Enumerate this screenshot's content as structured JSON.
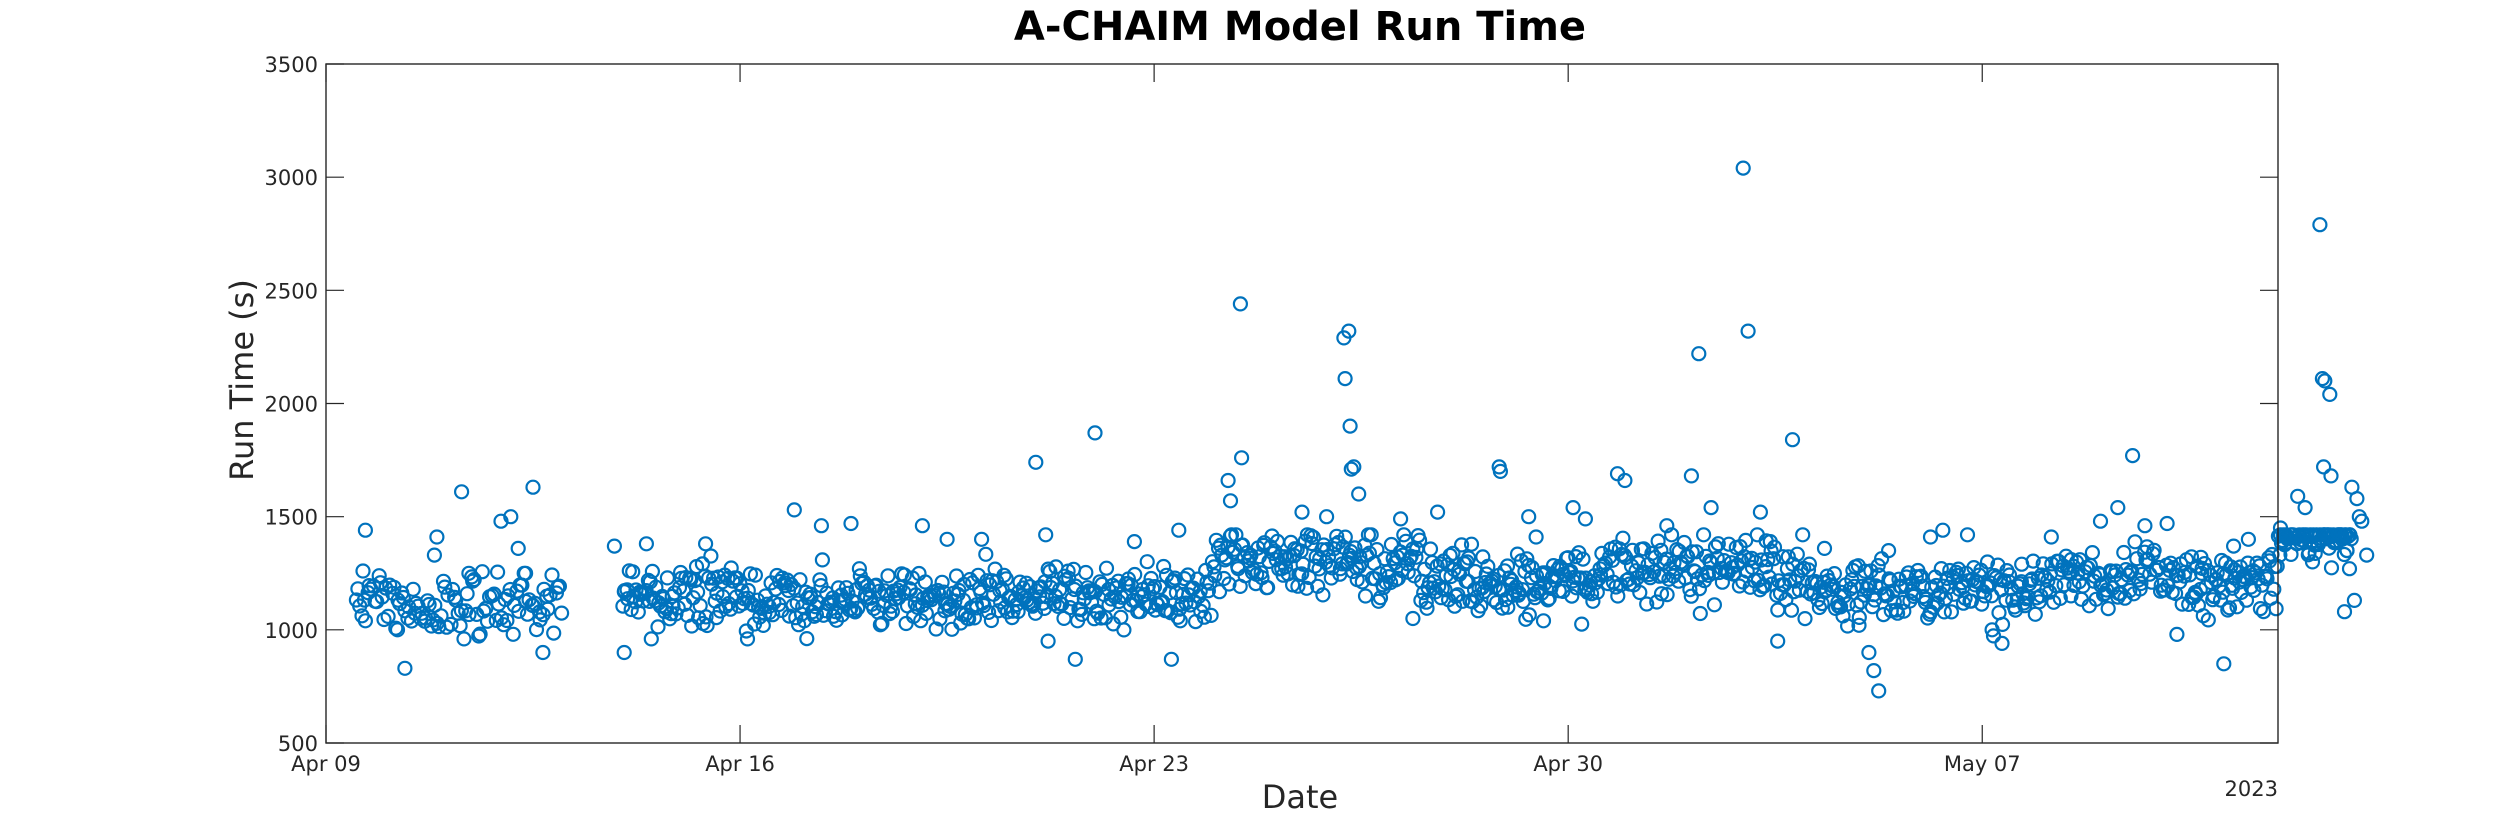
{
  "chart_data": {
    "type": "scatter",
    "title": "A-CHAIM Model Run Time",
    "xlabel": "Date",
    "ylabel": "Run Time (s)",
    "year_label": "2023",
    "xlim": [
      "2023-04-09",
      "2023-05-12"
    ],
    "ylim": [
      500,
      3500
    ],
    "x_ticks": [
      {
        "date": "2023-04-09",
        "label": "Apr 09"
      },
      {
        "date": "2023-04-16",
        "label": "Apr 16"
      },
      {
        "date": "2023-04-23",
        "label": "Apr 23"
      },
      {
        "date": "2023-04-30",
        "label": "Apr 30"
      },
      {
        "date": "2023-05-07",
        "label": "May 07"
      }
    ],
    "y_ticks": [
      500,
      1000,
      1500,
      2000,
      2500,
      3000,
      3500
    ],
    "grid": false,
    "marker": "circle",
    "color": "#0072BD",
    "series": [
      {
        "points": [
          [
            "2023-04-09 16:00",
            1440
          ],
          [
            "2023-04-09 15:00",
            1260
          ],
          [
            "2023-04-10 08:00",
            830
          ],
          [
            "2023-04-10 21:00",
            1410
          ],
          [
            "2023-04-11 07:00",
            1610
          ],
          [
            "2023-04-11 23:00",
            1480
          ],
          [
            "2023-04-12 03:00",
            1500
          ],
          [
            "2023-04-12 06:00",
            1360
          ],
          [
            "2023-04-12 12:00",
            1630
          ],
          [
            "2023-04-12 16:00",
            900
          ],
          [
            "2023-04-10 20:00",
            1330
          ],
          [
            "2023-04-11 10:00",
            1250
          ],
          [
            "2023-04-10 05:00",
            1000
          ],
          [
            "2023-04-12 09:00",
            1250
          ],
          [
            "2023-04-13 21:00",
            1370
          ],
          [
            "2023-04-14 01:00",
            900
          ],
          [
            "2023-04-14 10:00",
            1380
          ],
          [
            "2023-04-14 12:00",
            960
          ],
          [
            "2023-04-15 10:00",
            1380
          ],
          [
            "2023-04-16 03:00",
            960
          ],
          [
            "2023-04-16 22:00",
            1530
          ],
          [
            "2023-04-17 09:00",
            1460
          ],
          [
            "2023-04-17 21:00",
            1470
          ],
          [
            "2023-04-19 02:00",
            1460
          ],
          [
            "2023-04-19 12:00",
            1400
          ],
          [
            "2023-04-20 02:00",
            1400
          ],
          [
            "2023-04-21 00:00",
            1740
          ],
          [
            "2023-04-21 04:00",
            1420
          ],
          [
            "2023-04-21 05:00",
            950
          ],
          [
            "2023-04-21 16:00",
            870
          ],
          [
            "2023-04-22 00:00",
            1870
          ],
          [
            "2023-04-22 16:00",
            1390
          ],
          [
            "2023-04-23 07:00",
            870
          ],
          [
            "2023-04-23 10:00",
            1440
          ],
          [
            "2023-04-24 06:00",
            1660
          ],
          [
            "2023-04-24 11:00",
            2440
          ],
          [
            "2023-04-24 11:30",
            1760
          ],
          [
            "2023-04-24 07:00",
            1570
          ],
          [
            "2023-04-25 22:00",
            1500
          ],
          [
            "2023-04-25 12:00",
            1520
          ],
          [
            "2023-04-26 05:00",
            2290
          ],
          [
            "2023-04-26 07:00",
            2320
          ],
          [
            "2023-04-26 05:30",
            2110
          ],
          [
            "2023-04-26 07:30",
            1900
          ],
          [
            "2023-04-26 08:00",
            1710
          ],
          [
            "2023-04-26 09:00",
            1720
          ],
          [
            "2023-04-26 11:00",
            1600
          ],
          [
            "2023-04-27 04:00",
            1490
          ],
          [
            "2023-04-27 09:00",
            1050
          ],
          [
            "2023-04-27 19:00",
            1520
          ],
          [
            "2023-04-28 07:00",
            1300
          ],
          [
            "2023-04-28 20:00",
            1720
          ],
          [
            "2023-04-28 20:30",
            1700
          ],
          [
            "2023-04-29 08:00",
            1500
          ],
          [
            "2023-04-29 11:00",
            1410
          ],
          [
            "2023-04-29 14:00",
            1040
          ],
          [
            "2023-04-30 02:00",
            1540
          ],
          [
            "2023-04-30 07:00",
            1490
          ],
          [
            "2023-04-30 20:00",
            1690
          ],
          [
            "2023-04-30 23:00",
            1660
          ],
          [
            "2023-05-01 16:00",
            1460
          ],
          [
            "2023-05-02 02:00",
            1680
          ],
          [
            "2023-05-02 05:00",
            2220
          ],
          [
            "2023-05-02 10:00",
            1540
          ],
          [
            "2023-05-02 23:00",
            3040
          ],
          [
            "2023-05-03 01:00",
            2320
          ],
          [
            "2023-05-03 06:00",
            1520
          ],
          [
            "2023-05-03 10:00",
            1390
          ],
          [
            "2023-05-03 19:00",
            1840
          ],
          [
            "2023-05-03 13:00",
            950
          ],
          [
            "2023-05-04 08:00",
            1360
          ],
          [
            "2023-05-04 22:00",
            1020
          ],
          [
            "2023-05-05 02:00",
            900
          ],
          [
            "2023-05-05 04:00",
            820
          ],
          [
            "2023-05-05 06:00",
            730
          ],
          [
            "2023-05-05 10:00",
            1350
          ],
          [
            "2023-05-06 03:00",
            1410
          ],
          [
            "2023-05-06 08:00",
            1440
          ],
          [
            "2023-05-06 18:00",
            1420
          ],
          [
            "2023-05-07 04:00",
            1000
          ],
          [
            "2023-05-07 08:00",
            940
          ],
          [
            "2023-05-07 16:00",
            1290
          ],
          [
            "2023-05-08 04:00",
            1410
          ],
          [
            "2023-05-08 12:00",
            1150
          ],
          [
            "2023-05-09 00:00",
            1480
          ],
          [
            "2023-05-09 07:00",
            1540
          ],
          [
            "2023-05-09 13:00",
            1770
          ],
          [
            "2023-05-09 18:00",
            1460
          ],
          [
            "2023-05-10 03:00",
            1470
          ],
          [
            "2023-05-10 07:00",
            980
          ],
          [
            "2023-05-10 17:00",
            1250
          ],
          [
            "2023-05-10 22:00",
            1150
          ],
          [
            "2023-05-11 02:00",
            850
          ],
          [
            "2023-05-11 06:00",
            1370
          ],
          [
            "2023-05-11 12:00",
            1400
          ],
          [
            "2023-05-12 01:00",
            1450
          ],
          [
            "2023-05-12 08:00",
            1590
          ],
          [
            "2023-05-12 11:00",
            1540
          ],
          [
            "2023-05-12 14:00",
            1300
          ],
          [
            "2023-05-12 17:00",
            2790
          ],
          [
            "2023-05-12 18:00",
            2110
          ],
          [
            "2023-05-12 19:00",
            2100
          ],
          [
            "2023-05-12 21:00",
            2040
          ],
          [
            "2023-05-12 18:30",
            1720
          ],
          [
            "2023-05-12 21:30",
            1680
          ],
          [
            "2023-05-13 02:00",
            1400
          ],
          [
            "2023-05-13 04:00",
            1350
          ],
          [
            "2023-05-13 06:00",
            1630
          ],
          [
            "2023-05-13 08:00",
            1580
          ],
          [
            "2023-05-13 10:00",
            1480
          ],
          [
            "2023-05-13 12:00",
            1330
          ],
          [
            "2023-05-13 03:00",
            1080
          ],
          [
            "2023-05-13 07:00",
            1130
          ],
          [
            "2023-05-13 05:00",
            1270
          ],
          [
            "2023-05-13 09:00",
            1500
          ]
        ]
      }
    ],
    "bands": [
      {
        "from": "2023-04-09 12:00",
        "to": "2023-04-13 00:00",
        "center": 1130,
        "spread": 110,
        "n": 110
      },
      {
        "from": "2023-04-14 00:00",
        "to": "2023-04-20 00:00",
        "center": 1140,
        "spread": 95,
        "n": 250
      },
      {
        "from": "2023-04-20 00:00",
        "to": "2023-04-24 00:00",
        "center": 1150,
        "spread": 95,
        "n": 170
      },
      {
        "from": "2023-04-24 00:00",
        "to": "2023-04-27 12:00",
        "center": 1310,
        "spread": 100,
        "n": 150
      },
      {
        "from": "2023-04-27 12:00",
        "to": "2023-04-30 12:00",
        "center": 1210,
        "spread": 95,
        "n": 140
      },
      {
        "from": "2023-04-30 12:00",
        "to": "2023-05-04 00:00",
        "center": 1260,
        "spread": 95,
        "n": 150
      },
      {
        "from": "2023-05-04 00:00",
        "to": "2023-05-08 00:00",
        "center": 1170,
        "spread": 95,
        "n": 170
      },
      {
        "from": "2023-05-08 00:00",
        "to": "2023-05-10 12:00",
        "center": 1230,
        "spread": 95,
        "n": 100
      },
      {
        "from": "2023-05-10 12:00",
        "to": "2023-05-12 00:00",
        "center": 1220,
        "spread": 110,
        "n": 70
      },
      {
        "from": "2023-05-12 00:00",
        "to": "2023-05-13 06:00",
        "center": 1420,
        "spread": 80,
        "n": 70
      }
    ]
  }
}
